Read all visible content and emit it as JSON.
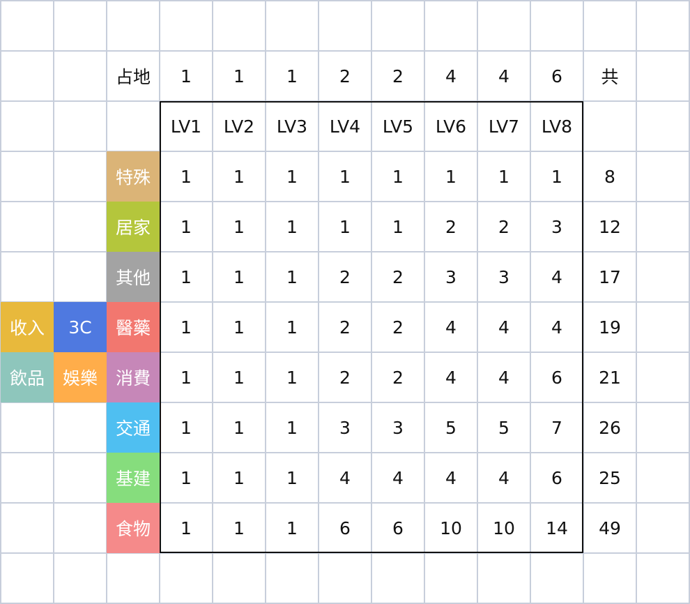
{
  "colors": {
    "grid_line": "#c7cedb",
    "frame": "#111111",
    "tags": {
      "特殊": "#dbb477",
      "居家": "#b4c63c",
      "其他": "#a3a3a3",
      "醫藥": "#f2776f",
      "消費": "#c687b8",
      "交通": "#4fbff1",
      "基建": "#86dd7d",
      "食物": "#f58a8a",
      "收入": "#e8b93c",
      "3C": "#4f79e0",
      "飲品": "#8ec6bc",
      "娛樂": "#ffad4a"
    }
  },
  "land_label": "占地",
  "land_values": [
    "1",
    "1",
    "1",
    "2",
    "2",
    "4",
    "4",
    "6"
  ],
  "total_header": "共",
  "levels": [
    "LV1",
    "LV2",
    "LV3",
    "LV4",
    "LV5",
    "LV6",
    "LV7",
    "LV8"
  ],
  "rows": [
    {
      "category": "特殊",
      "values": [
        "1",
        "1",
        "1",
        "1",
        "1",
        "1",
        "1",
        "1"
      ],
      "total": "8"
    },
    {
      "category": "居家",
      "values": [
        "1",
        "1",
        "1",
        "1",
        "1",
        "2",
        "2",
        "3"
      ],
      "total": "12"
    },
    {
      "category": "其他",
      "values": [
        "1",
        "1",
        "1",
        "2",
        "2",
        "3",
        "3",
        "4"
      ],
      "total": "17"
    },
    {
      "category": "醫藥",
      "values": [
        "1",
        "1",
        "1",
        "2",
        "2",
        "4",
        "4",
        "4"
      ],
      "total": "19"
    },
    {
      "category": "消費",
      "values": [
        "1",
        "1",
        "1",
        "2",
        "2",
        "4",
        "4",
        "6"
      ],
      "total": "21"
    },
    {
      "category": "交通",
      "values": [
        "1",
        "1",
        "1",
        "3",
        "3",
        "5",
        "5",
        "7"
      ],
      "total": "26"
    },
    {
      "category": "基建",
      "values": [
        "1",
        "1",
        "1",
        "4",
        "4",
        "4",
        "4",
        "6"
      ],
      "total": "25"
    },
    {
      "category": "食物",
      "values": [
        "1",
        "1",
        "1",
        "6",
        "6",
        "10",
        "10",
        "14"
      ],
      "total": "49"
    }
  ],
  "extra_tags": [
    {
      "label": "收入",
      "row": 3,
      "col": 0
    },
    {
      "label": "3C",
      "row": 3,
      "col": 1
    },
    {
      "label": "飲品",
      "row": 4,
      "col": 0
    },
    {
      "label": "娛樂",
      "row": 4,
      "col": 1
    }
  ]
}
